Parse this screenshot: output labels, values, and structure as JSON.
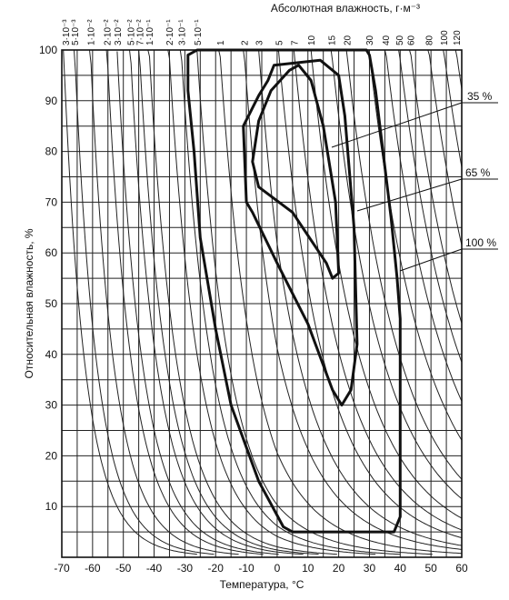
{
  "chart_data": {
    "type": "line",
    "xlabel": "Температура, °С",
    "ylabel": "Относительная влажность, %",
    "top_axis_label": "Абсолютная влажность, г·м⁻³",
    "xlim": [
      -70,
      60
    ],
    "ylim": [
      0,
      100
    ],
    "x_ticks": [
      -70,
      -60,
      -50,
      -40,
      -30,
      -20,
      -10,
      0,
      10,
      20,
      30,
      40,
      50,
      60
    ],
    "y_ticks": [
      10,
      20,
      30,
      40,
      50,
      60,
      70,
      80,
      90,
      100
    ],
    "grid": true,
    "absolute_humidity_isolines": [
      {
        "label": "3·10⁻³",
        "value": 0.003
      },
      {
        "label": "5·10⁻³",
        "value": 0.005
      },
      {
        "label": "1·10⁻²",
        "value": 0.01
      },
      {
        "label": "2·10⁻²",
        "value": 0.02
      },
      {
        "label": "3·10⁻²",
        "value": 0.03
      },
      {
        "label": "5·10⁻²",
        "value": 0.05
      },
      {
        "label": "7·10⁻²",
        "value": 0.07
      },
      {
        "label": "1·10⁻¹",
        "value": 0.1
      },
      {
        "label": "2·10⁻¹",
        "value": 0.2
      },
      {
        "label": "3·10⁻¹",
        "value": 0.3
      },
      {
        "label": "5·10⁻¹",
        "value": 0.5
      },
      {
        "label": "1",
        "value": 1
      },
      {
        "label": "2",
        "value": 2
      },
      {
        "label": "3",
        "value": 3
      },
      {
        "label": "5",
        "value": 5
      },
      {
        "label": "7",
        "value": 7
      },
      {
        "label": "10",
        "value": 10
      },
      {
        "label": "15",
        "value": 15
      },
      {
        "label": "20",
        "value": 20
      },
      {
        "label": "30",
        "value": 30
      },
      {
        "label": "40",
        "value": 40
      },
      {
        "label": "50",
        "value": 50
      },
      {
        "label": "60",
        "value": 60
      },
      {
        "label": "80",
        "value": 80
      },
      {
        "label": "100",
        "value": 100
      },
      {
        "label": "120",
        "value": 120
      }
    ],
    "zones": [
      {
        "name": "35 %",
        "points": [
          [
            4,
            96
          ],
          [
            7,
            97
          ],
          [
            11,
            94
          ],
          [
            15,
            85
          ],
          [
            19,
            70
          ],
          [
            20,
            56
          ],
          [
            18,
            55
          ],
          [
            16,
            58
          ],
          [
            5,
            68
          ],
          [
            -6,
            73
          ],
          [
            -8,
            78
          ],
          [
            -6,
            86
          ],
          [
            -2,
            92
          ]
        ]
      },
      {
        "name": "65 %",
        "points": [
          [
            -1,
            97
          ],
          [
            14,
            98
          ],
          [
            20,
            95
          ],
          [
            22,
            87
          ],
          [
            25,
            65
          ],
          [
            26,
            42
          ],
          [
            24,
            33
          ],
          [
            21,
            30
          ],
          [
            18,
            33
          ],
          [
            10,
            46
          ],
          [
            0,
            58
          ],
          [
            -8,
            68
          ],
          [
            -10,
            70
          ],
          [
            -11,
            85
          ],
          [
            -6,
            91
          ],
          [
            -3,
            94
          ]
        ]
      },
      {
        "name": "100 %",
        "points": [
          [
            -29,
            99
          ],
          [
            -26,
            100
          ],
          [
            29,
            100
          ],
          [
            30,
            99
          ],
          [
            32,
            92
          ],
          [
            37,
            67
          ],
          [
            39,
            55
          ],
          [
            40,
            47
          ],
          [
            40,
            8
          ],
          [
            38,
            5
          ],
          [
            5,
            5
          ],
          [
            2,
            6
          ],
          [
            -6,
            15
          ],
          [
            -15,
            30
          ],
          [
            -20,
            45
          ],
          [
            -25,
            63
          ],
          [
            -27,
            80
          ],
          [
            -29,
            92
          ]
        ]
      }
    ],
    "annotations": [
      "35 %",
      "65 %",
      "100 %"
    ]
  }
}
